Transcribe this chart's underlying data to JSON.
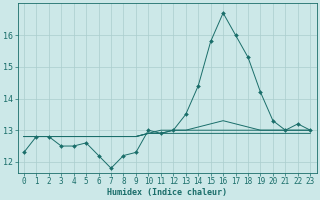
{
  "xlabel": "Humidex (Indice chaleur)",
  "background_color": "#cce8e8",
  "grid_color": "#aacece",
  "line_color": "#1a6e6a",
  "x": [
    0,
    1,
    2,
    3,
    4,
    5,
    6,
    7,
    8,
    9,
    10,
    11,
    12,
    13,
    14,
    15,
    16,
    17,
    18,
    19,
    20,
    21,
    22,
    23
  ],
  "y_main": [
    12.3,
    12.8,
    12.8,
    12.5,
    12.5,
    12.6,
    12.2,
    11.8,
    12.2,
    12.3,
    13.0,
    12.9,
    13.0,
    13.5,
    14.4,
    15.8,
    16.7,
    16.0,
    15.3,
    14.2,
    13.3,
    13.0,
    13.2,
    13.0
  ],
  "y_flat1": [
    12.8,
    12.8,
    12.8,
    12.8,
    12.8,
    12.8,
    12.8,
    12.8,
    12.8,
    12.8,
    12.9,
    12.9,
    12.9,
    12.9,
    12.9,
    12.9,
    12.9,
    12.9,
    12.9,
    12.9,
    12.9,
    12.9,
    12.9,
    12.9
  ],
  "y_flat2": [
    12.8,
    12.8,
    12.8,
    12.8,
    12.8,
    12.8,
    12.8,
    12.8,
    12.8,
    12.8,
    12.9,
    12.9,
    13.0,
    13.0,
    13.0,
    13.0,
    13.0,
    13.0,
    13.0,
    13.0,
    13.0,
    13.0,
    13.0,
    13.0
  ],
  "y_gradual": [
    12.8,
    12.8,
    12.8,
    12.8,
    12.8,
    12.8,
    12.8,
    12.8,
    12.8,
    12.8,
    12.9,
    13.0,
    13.0,
    13.0,
    13.1,
    13.2,
    13.3,
    13.2,
    13.1,
    13.0,
    13.0,
    13.0,
    13.0,
    13.0
  ],
  "ylim": [
    11.65,
    17.0
  ],
  "yticks": [
    12,
    13,
    14,
    15,
    16
  ],
  "xlim": [
    -0.5,
    23.5
  ],
  "xticks": [
    0,
    1,
    2,
    3,
    4,
    5,
    6,
    7,
    8,
    9,
    10,
    11,
    12,
    13,
    14,
    15,
    16,
    17,
    18,
    19,
    20,
    21,
    22,
    23
  ],
  "tick_fontsize": 5.5,
  "xlabel_fontsize": 6.0
}
